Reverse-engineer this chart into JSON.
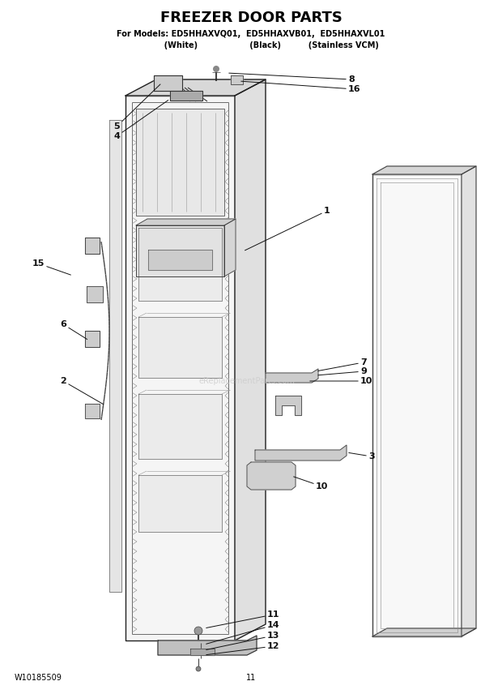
{
  "title": "FREEZER DOOR PARTS",
  "subtitle_line1": "For Models: ED5HHAXVQ01,  ED5HHAXVB01,  ED5HHAXVL01",
  "subtitle_line2": "               (White)                   (Black)          (Stainless VCM)",
  "footer_left": "W10185509",
  "footer_center": "11",
  "bg_color": "#ffffff",
  "title_fontsize": 13,
  "subtitle_fontsize": 7,
  "label_fontsize": 8
}
